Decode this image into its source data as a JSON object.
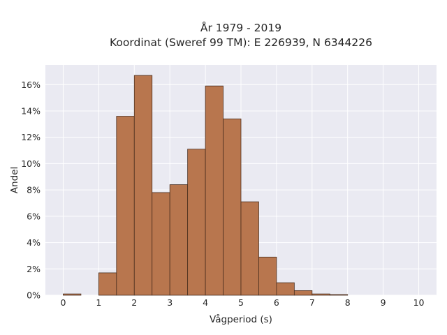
{
  "chart_data": {
    "type": "bar",
    "title_lines": [
      "År 1979 - 2019",
      "Koordinat (Sweref 99 TM): E 226939, N 6344226"
    ],
    "xlabel": "Vågperiod (s)",
    "ylabel": "Andel",
    "bin_width": 0.5,
    "bins": [
      {
        "x0": 0.0,
        "value": 0.1
      },
      {
        "x0": 0.5,
        "value": 0.0
      },
      {
        "x0": 1.0,
        "value": 1.7
      },
      {
        "x0": 1.5,
        "value": 13.6
      },
      {
        "x0": 2.0,
        "value": 16.7
      },
      {
        "x0": 2.5,
        "value": 7.8
      },
      {
        "x0": 3.0,
        "value": 8.4
      },
      {
        "x0": 3.5,
        "value": 11.1
      },
      {
        "x0": 4.0,
        "value": 15.9
      },
      {
        "x0": 4.5,
        "value": 13.4
      },
      {
        "x0": 5.0,
        "value": 7.1
      },
      {
        "x0": 5.5,
        "value": 2.9
      },
      {
        "x0": 6.0,
        "value": 0.95
      },
      {
        "x0": 6.5,
        "value": 0.35
      },
      {
        "x0": 7.0,
        "value": 0.1
      },
      {
        "x0": 7.5,
        "value": 0.05
      },
      {
        "x0": 8.0,
        "value": 0.0
      },
      {
        "x0": 8.5,
        "value": 0.0
      },
      {
        "x0": 9.0,
        "value": 0.0
      },
      {
        "x0": 9.5,
        "value": 0.0
      }
    ],
    "xlim": [
      -0.5,
      10.5
    ],
    "ylim": [
      0,
      17.5
    ],
    "x_ticks": [
      0,
      1,
      2,
      3,
      4,
      5,
      6,
      7,
      8,
      9,
      10
    ],
    "x_tick_labels": [
      "0",
      "1",
      "2",
      "3",
      "4",
      "5",
      "6",
      "7",
      "8",
      "9",
      "10"
    ],
    "y_ticks": [
      0,
      2,
      4,
      6,
      8,
      10,
      12,
      14,
      16
    ],
    "y_tick_labels": [
      "0%",
      "2%",
      "4%",
      "6%",
      "8%",
      "10%",
      "12%",
      "14%",
      "16%"
    ],
    "grid": true,
    "colors": {
      "plot_background": "#eaeaf2",
      "grid": "#ffffff",
      "bar_fill": "#b8764e",
      "bar_edge": "#4a2e1e",
      "text": "#262626"
    }
  }
}
